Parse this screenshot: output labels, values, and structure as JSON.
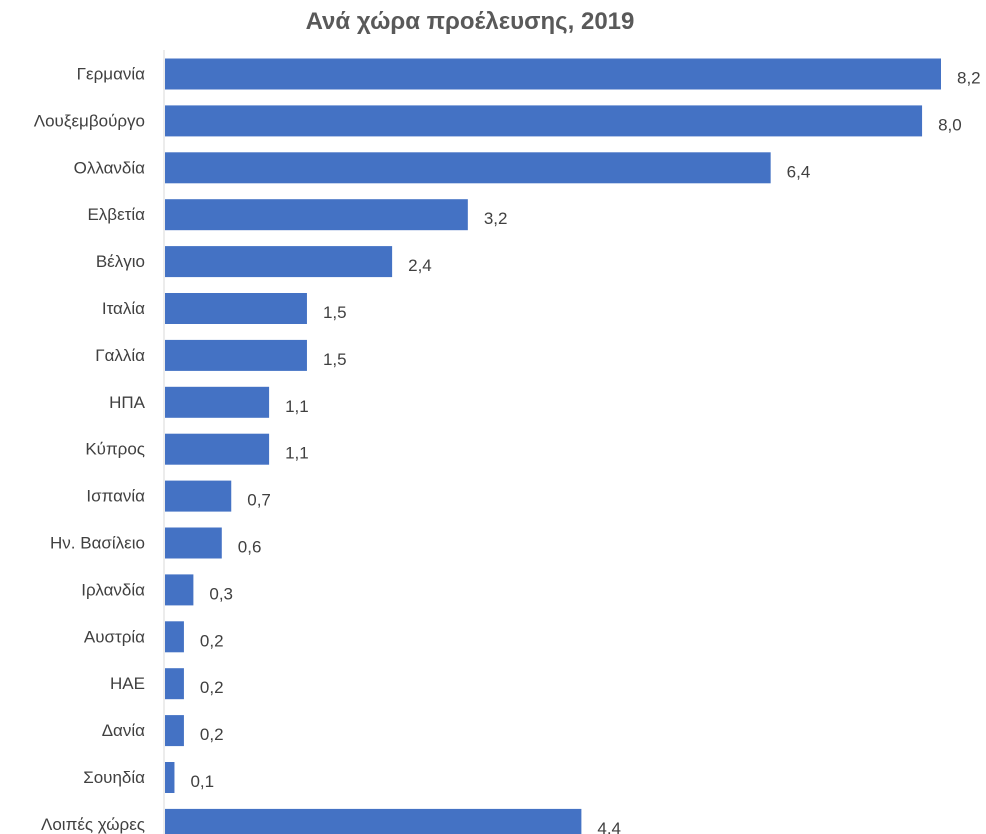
{
  "chart_data": {
    "type": "bar",
    "orientation": "horizontal",
    "title": "Ανά χώρα προέλευσης, 2019",
    "xlabel": "",
    "ylabel": "",
    "grid": false,
    "legend": "none",
    "xlim": [
      0,
      8.2
    ],
    "categories": [
      "Γερμανία",
      "Λουξεμβούργο",
      "Ολλανδία",
      "Ελβετία",
      "Βέλγιο",
      "Ιταλία",
      "Γαλλία",
      "ΗΠΑ",
      "Κύπρος",
      "Ισπανία",
      "Ην. Βασίλειο",
      "Ιρλανδία",
      "Αυστρία",
      "ΗΑΕ",
      "Δανία",
      "Σουηδία",
      "Λοιπές χώρες"
    ],
    "values": [
      8.2,
      8.0,
      6.4,
      3.2,
      2.4,
      1.5,
      1.5,
      1.1,
      1.1,
      0.7,
      0.6,
      0.3,
      0.2,
      0.2,
      0.2,
      0.1,
      4.4
    ],
    "data_labels": [
      "8,2",
      "8,0",
      "6,4",
      "3,2",
      "2,4",
      "1,5",
      "1,5",
      "1,1",
      "1,1",
      "0,7",
      "0,6",
      "0,3",
      "0,2",
      "0,2",
      "0,2",
      "0,1",
      "4,4"
    ],
    "bar_color": "#4472C4",
    "axis_color": "#D9D9D9",
    "text_color": "#404040"
  }
}
